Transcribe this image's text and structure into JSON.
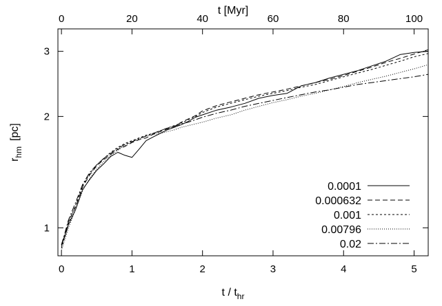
{
  "chart_data": {
    "type": "line",
    "xlabel_bottom": "t / t",
    "xlabel_bottom_sub": "hr",
    "xlabel_top": "t [Myr]",
    "ylabel": "r",
    "ylabel_sub": "hm",
    "ylabel_unit": "[pc]",
    "xlim": [
      -0.05,
      5.2
    ],
    "ylim": [
      0.84,
      3.45
    ],
    "yscale": "log",
    "xticks": [
      0,
      1,
      2,
      3,
      4,
      5
    ],
    "yticks": [
      1,
      2,
      3
    ],
    "top_ticks": [
      0,
      20,
      40,
      60,
      80,
      100
    ],
    "top_axis_max_value": 100,
    "grid": false,
    "legend_position": "bottom-right",
    "series": [
      {
        "name": "0.0001",
        "dash": "",
        "x": [
          0,
          0.05,
          0.1,
          0.2,
          0.3,
          0.4,
          0.5,
          0.6,
          0.7,
          0.8,
          0.9,
          1.0,
          1.1,
          1.2,
          1.3,
          1.4,
          1.5,
          1.6,
          1.7,
          1.8,
          1.9,
          2.0,
          2.2,
          2.4,
          2.6,
          2.8,
          3.0,
          3.2,
          3.4,
          3.6,
          3.8,
          4.0,
          4.2,
          4.4,
          4.6,
          4.8,
          5.0,
          5.2
        ],
        "y": [
          0.9,
          0.95,
          1.02,
          1.12,
          1.27,
          1.35,
          1.43,
          1.49,
          1.56,
          1.6,
          1.57,
          1.55,
          1.63,
          1.72,
          1.76,
          1.8,
          1.84,
          1.87,
          1.9,
          1.94,
          1.99,
          2.02,
          2.08,
          2.12,
          2.17,
          2.24,
          2.28,
          2.31,
          2.42,
          2.47,
          2.54,
          2.6,
          2.66,
          2.74,
          2.82,
          2.94,
          2.98,
          3.0
        ]
      },
      {
        "name": "0.000632",
        "dash": "7,4",
        "x": [
          0,
          0.05,
          0.1,
          0.2,
          0.3,
          0.4,
          0.5,
          0.6,
          0.7,
          0.8,
          0.9,
          1.0,
          1.1,
          1.2,
          1.3,
          1.4,
          1.5,
          1.6,
          1.7,
          1.8,
          1.9,
          2.0,
          2.2,
          2.4,
          2.6,
          2.8,
          3.0,
          3.2,
          3.4,
          3.6,
          3.8,
          4.0,
          4.2,
          4.4,
          4.6,
          4.8,
          5.0,
          5.2
        ],
        "y": [
          0.89,
          0.96,
          1.04,
          1.14,
          1.29,
          1.39,
          1.47,
          1.53,
          1.58,
          1.63,
          1.66,
          1.7,
          1.73,
          1.75,
          1.79,
          1.82,
          1.85,
          1.88,
          1.93,
          1.97,
          2.01,
          2.07,
          2.14,
          2.19,
          2.24,
          2.29,
          2.33,
          2.37,
          2.42,
          2.47,
          2.52,
          2.58,
          2.65,
          2.72,
          2.8,
          2.87,
          2.95,
          3.03
        ]
      },
      {
        "name": "0.001",
        "dash": "3,3",
        "x": [
          0,
          0.05,
          0.1,
          0.2,
          0.3,
          0.4,
          0.5,
          0.6,
          0.7,
          0.8,
          0.9,
          1.0,
          1.1,
          1.2,
          1.3,
          1.4,
          1.5,
          1.6,
          1.7,
          1.8,
          1.9,
          2.0,
          2.2,
          2.4,
          2.6,
          2.8,
          3.0,
          3.2,
          3.4,
          3.6,
          3.8,
          4.0,
          4.2,
          4.4,
          4.6,
          4.8,
          5.0,
          5.2
        ],
        "y": [
          0.88,
          0.95,
          1.03,
          1.15,
          1.3,
          1.4,
          1.48,
          1.54,
          1.6,
          1.65,
          1.69,
          1.72,
          1.75,
          1.78,
          1.8,
          1.83,
          1.86,
          1.89,
          1.92,
          1.96,
          2.0,
          2.05,
          2.12,
          2.17,
          2.22,
          2.27,
          2.31,
          2.35,
          2.4,
          2.44,
          2.5,
          2.56,
          2.62,
          2.68,
          2.75,
          2.82,
          2.9,
          2.96
        ]
      },
      {
        "name": "0.00796",
        "dash": "1,2",
        "x": [
          0,
          0.05,
          0.1,
          0.2,
          0.3,
          0.4,
          0.5,
          0.6,
          0.7,
          0.8,
          0.9,
          1.0,
          1.1,
          1.2,
          1.3,
          1.4,
          1.5,
          1.6,
          1.7,
          1.8,
          1.9,
          2.0,
          2.2,
          2.4,
          2.6,
          2.8,
          3.0,
          3.2,
          3.4,
          3.6,
          3.8,
          4.0,
          4.2,
          4.4,
          4.6,
          4.8,
          5.0,
          5.2
        ],
        "y": [
          0.87,
          0.93,
          1.0,
          1.12,
          1.26,
          1.36,
          1.44,
          1.51,
          1.57,
          1.62,
          1.67,
          1.71,
          1.74,
          1.77,
          1.79,
          1.8,
          1.82,
          1.84,
          1.87,
          1.89,
          1.91,
          1.93,
          1.98,
          2.02,
          2.08,
          2.13,
          2.18,
          2.22,
          2.27,
          2.31,
          2.36,
          2.41,
          2.47,
          2.52,
          2.57,
          2.63,
          2.69,
          2.76
        ]
      },
      {
        "name": "0.02",
        "dash": "9,3,2,3",
        "x": [
          0,
          0.05,
          0.1,
          0.2,
          0.3,
          0.4,
          0.5,
          0.6,
          0.7,
          0.8,
          0.9,
          1.0,
          1.1,
          1.2,
          1.3,
          1.4,
          1.5,
          1.6,
          1.7,
          1.8,
          1.9,
          2.0,
          2.2,
          2.4,
          2.6,
          2.8,
          3.0,
          3.2,
          3.4,
          3.6,
          3.8,
          4.0,
          4.2,
          4.4,
          4.6,
          4.8,
          5.0,
          5.2
        ],
        "y": [
          0.9,
          0.97,
          1.05,
          1.17,
          1.31,
          1.41,
          1.48,
          1.54,
          1.59,
          1.64,
          1.68,
          1.71,
          1.74,
          1.77,
          1.8,
          1.83,
          1.86,
          1.88,
          1.91,
          1.93,
          1.96,
          1.99,
          2.04,
          2.08,
          2.13,
          2.17,
          2.21,
          2.25,
          2.29,
          2.33,
          2.36,
          2.4,
          2.44,
          2.47,
          2.5,
          2.53,
          2.56,
          2.6
        ]
      }
    ]
  }
}
